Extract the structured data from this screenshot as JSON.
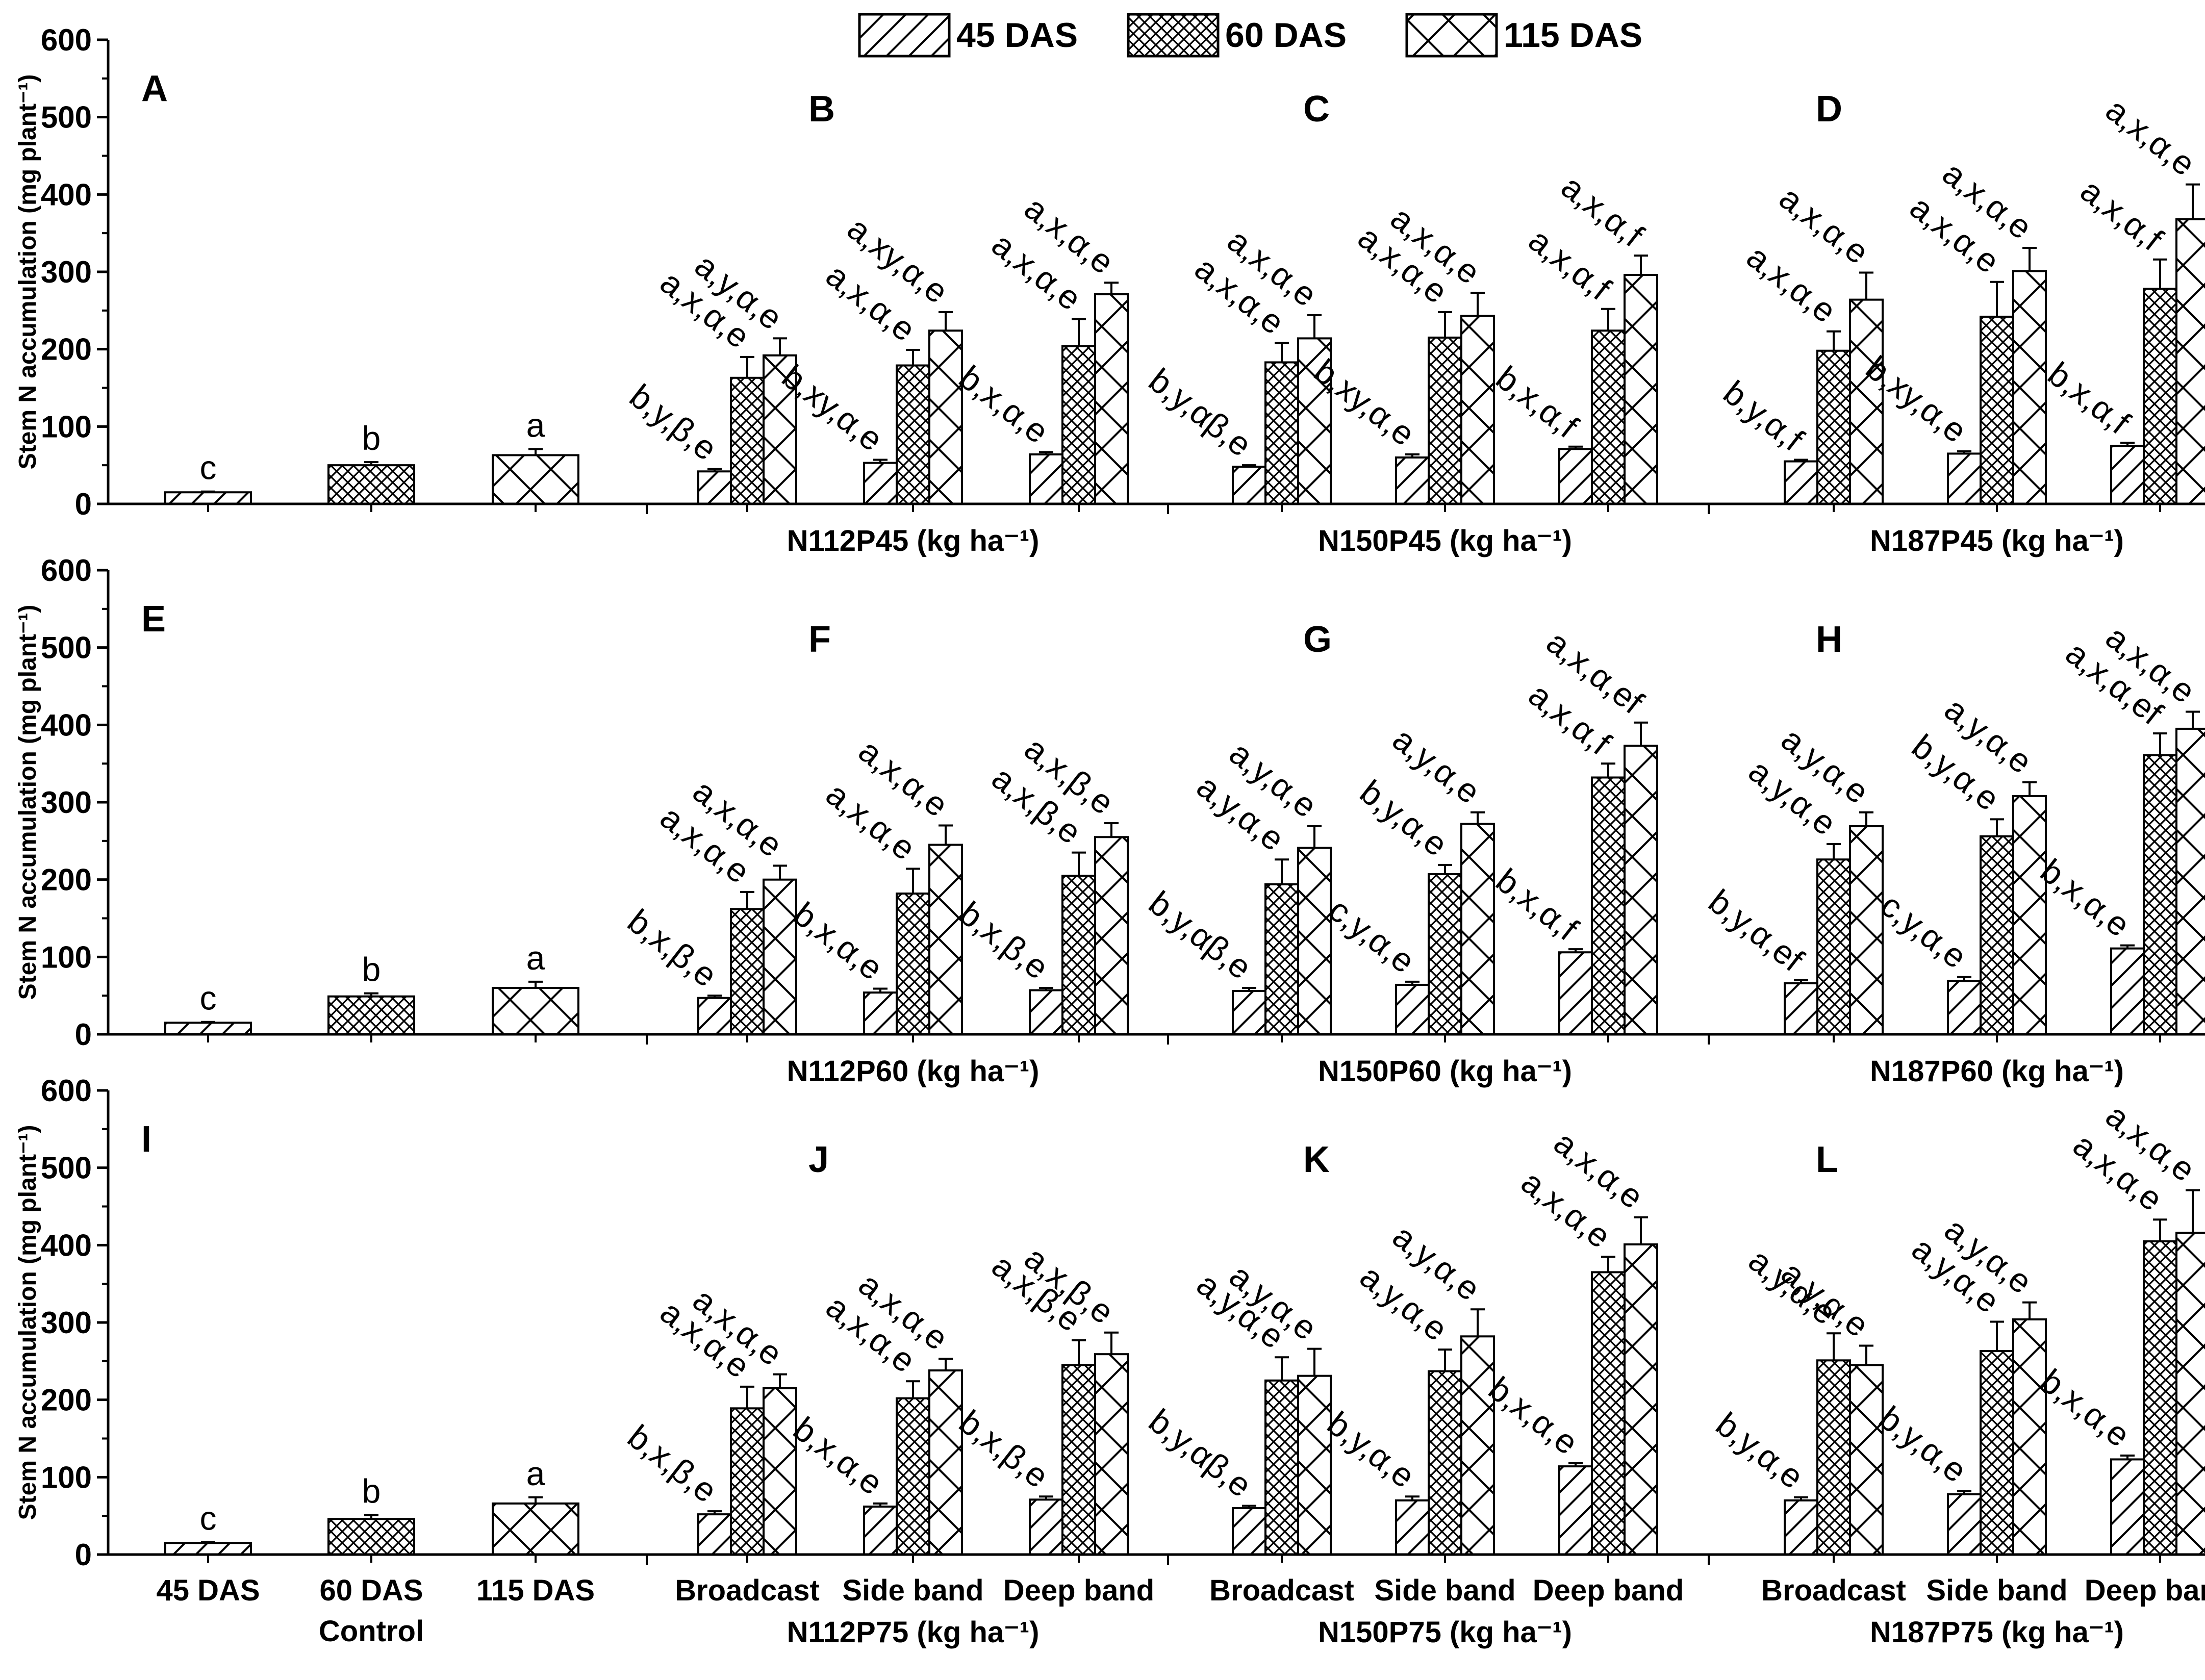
{
  "legend": [
    "45 DAS",
    "60 DAS",
    "115 DAS"
  ],
  "chart_data": {
    "type": "bar",
    "ylabel": "Stem N accumulation (mg plant⁻¹)",
    "ylim": [
      0,
      600
    ],
    "yticks": [
      0,
      100,
      200,
      300,
      400,
      500,
      600
    ],
    "series_names": [
      "45 DAS",
      "60 DAS",
      "115 DAS"
    ],
    "rows": [
      {
        "control": {
          "letter": "A",
          "categories": [
            "45 DAS",
            "60 DAS",
            "115 DAS"
          ],
          "values": [
            15,
            50,
            63
          ],
          "errors": [
            1,
            4,
            8
          ],
          "annotations": [
            "c",
            "b",
            "a"
          ]
        },
        "groups": [
          {
            "letter": "B",
            "xlabel": "N112P45 (kg ha⁻¹)",
            "values": [
              [
                42,
                163,
                192
              ],
              [
                53,
                179,
                224
              ],
              [
                64,
                204,
                271
              ]
            ],
            "errors": [
              [
                3,
                27,
                22
              ],
              [
                4,
                20,
                24
              ],
              [
                3,
                35,
                15
              ]
            ],
            "annotations": [
              [
                "b,y,β,e",
                "a,x,α,e",
                "a,y,α,e"
              ],
              [
                "b,xy,α,e",
                "a,x,α,e",
                "a,xy,α,e"
              ],
              [
                "b,x,α,e",
                "a,x,α,e",
                "a,x,α,e"
              ]
            ]
          },
          {
            "letter": "C",
            "xlabel": "N150P45 (kg ha⁻¹)",
            "values": [
              [
                48,
                183,
                214
              ],
              [
                60,
                215,
                243
              ],
              [
                71,
                224,
                296
              ]
            ],
            "errors": [
              [
                2,
                25,
                30
              ],
              [
                4,
                33,
                30
              ],
              [
                3,
                28,
                25
              ]
            ],
            "annotations": [
              [
                "b,y,αβ,e",
                "a,x,α,e",
                "a,x,α,e"
              ],
              [
                "b,xy,α,e",
                "a,x,α,e",
                "a,x,α,e"
              ],
              [
                "b,x,α,f",
                "a,x,α,f",
                "a,x,α,f"
              ]
            ]
          },
          {
            "letter": "D",
            "xlabel": "N187P45 (kg ha⁻¹)",
            "values": [
              [
                55,
                198,
                264
              ],
              [
                65,
                242,
                301
              ],
              [
                75,
                278,
                368
              ]
            ],
            "errors": [
              [
                2,
                25,
                35
              ],
              [
                3,
                45,
                30
              ],
              [
                4,
                38,
                45
              ]
            ],
            "annotations": [
              [
                "b,y,α,f",
                "a,x,α,e",
                "a,x,α,e"
              ],
              [
                "b,xy,α,e",
                "a,x,α,e",
                "a,x,α,e"
              ],
              [
                "b,x,α,f",
                "a,x,α,f",
                "a,x,α,e"
              ]
            ]
          }
        ]
      },
      {
        "control": {
          "letter": "E",
          "categories": [
            "45 DAS",
            "60 DAS",
            "115 DAS"
          ],
          "values": [
            15,
            49,
            60
          ],
          "errors": [
            1,
            4,
            8
          ],
          "annotations": [
            "c",
            "b",
            "a"
          ]
        },
        "groups": [
          {
            "letter": "F",
            "xlabel": "N112P60 (kg ha⁻¹)",
            "values": [
              [
                47,
                162,
                200
              ],
              [
                54,
                182,
                245
              ],
              [
                57,
                205,
                255
              ]
            ],
            "errors": [
              [
                3,
                22,
                18
              ],
              [
                5,
                32,
                25
              ],
              [
                3,
                30,
                18
              ]
            ],
            "annotations": [
              [
                "b,x,β,e",
                "a,x,α,e",
                "a,x,α,e"
              ],
              [
                "b,x,α,e",
                "a,x,α,e",
                "a,x,α,e"
              ],
              [
                "b,x,β,e",
                "a,x,β,e",
                "a,x,β,e"
              ]
            ]
          },
          {
            "letter": "G",
            "xlabel": "N150P60 (kg ha⁻¹)",
            "values": [
              [
                56,
                194,
                241
              ],
              [
                64,
                207,
                272
              ],
              [
                106,
                332,
                373
              ]
            ],
            "errors": [
              [
                4,
                32,
                28
              ],
              [
                4,
                12,
                15
              ],
              [
                4,
                18,
                30
              ]
            ],
            "annotations": [
              [
                "b,y,αβ,e",
                "a,y,α,e",
                "a,y,α,e"
              ],
              [
                "c,y,α,e",
                "b,y,α,e",
                "a,y,α,e"
              ],
              [
                "b,x,α,f",
                "a,x,α,f",
                "a,x,α,ef"
              ]
            ]
          },
          {
            "letter": "H",
            "xlabel": "N187P60 (kg ha⁻¹)",
            "values": [
              [
                66,
                226,
                269
              ],
              [
                69,
                256,
                308
              ],
              [
                111,
                361,
                395
              ]
            ],
            "errors": [
              [
                4,
                20,
                18
              ],
              [
                5,
                22,
                18
              ],
              [
                4,
                28,
                22
              ]
            ],
            "annotations": [
              [
                "b,y,α,ef",
                "a,y,α,e",
                "a,y,α,e"
              ],
              [
                "c,y,α,e",
                "b,y,α,e",
                "a,y,α,e"
              ],
              [
                "b,x,α,e",
                "a,x,α,ef",
                "a,x,α,e"
              ]
            ]
          }
        ]
      },
      {
        "control": {
          "letter": "I",
          "categories": [
            "45 DAS",
            "60 DAS",
            "115 DAS"
          ],
          "values": [
            15,
            46,
            66
          ],
          "errors": [
            1,
            5,
            8
          ],
          "annotations": [
            "c",
            "b",
            "a"
          ]
        },
        "xlabel_bottom": "Control",
        "groups": [
          {
            "letter": "J",
            "xlabel": "N112P75 (kg ha⁻¹)",
            "categories": [
              "Broadcast",
              "Side band",
              "Deep band"
            ],
            "values": [
              [
                52,
                189,
                215
              ],
              [
                62,
                202,
                238
              ],
              [
                71,
                245,
                259
              ]
            ],
            "errors": [
              [
                4,
                28,
                18
              ],
              [
                4,
                22,
                15
              ],
              [
                4,
                32,
                28
              ]
            ],
            "annotations": [
              [
                "b,x,β,e",
                "a,x,α,e",
                "a,x,α,e"
              ],
              [
                "b,x,α,e",
                "a,x,α,e",
                "a,x,α,e"
              ],
              [
                "b,x,β,e",
                "a,x,β,e",
                "a,x,β,e"
              ]
            ]
          },
          {
            "letter": "K",
            "xlabel": "N150P75 (kg ha⁻¹)",
            "categories": [
              "Broadcast",
              "Side band",
              "Deep band"
            ],
            "values": [
              [
                60,
                225,
                231
              ],
              [
                70,
                237,
                282
              ],
              [
                114,
                365,
                401
              ]
            ],
            "errors": [
              [
                3,
                30,
                35
              ],
              [
                5,
                28,
                35
              ],
              [
                4,
                20,
                35
              ]
            ],
            "annotations": [
              [
                "b,y,αβ,e",
                "a,y,α,e",
                "a,y,α,e"
              ],
              [
                "b,y,α,e",
                "a,y,α,e",
                "a,y,α,e"
              ],
              [
                "b,x,α,e",
                "a,x,α,e",
                "a,x,α,e"
              ]
            ]
          },
          {
            "letter": "L",
            "xlabel": "N187P75 (kg ha⁻¹)",
            "categories": [
              "Broadcast",
              "Side band",
              "Deep band"
            ],
            "values": [
              [
                70,
                251,
                245
              ],
              [
                78,
                263,
                304
              ],
              [
                123,
                405,
                416
              ]
            ],
            "errors": [
              [
                4,
                35,
                25
              ],
              [
                4,
                38,
                22
              ],
              [
                5,
                28,
                55
              ]
            ],
            "annotations": [
              [
                "b,y,α,e",
                "a,y,α,e",
                "a,y,α,e"
              ],
              [
                "b,y,α,e",
                "a,y,α,e",
                "a,y,α,e"
              ],
              [
                "b,x,α,e",
                "a,x,α,e",
                "a,x,α,e"
              ]
            ]
          }
        ]
      }
    ]
  }
}
